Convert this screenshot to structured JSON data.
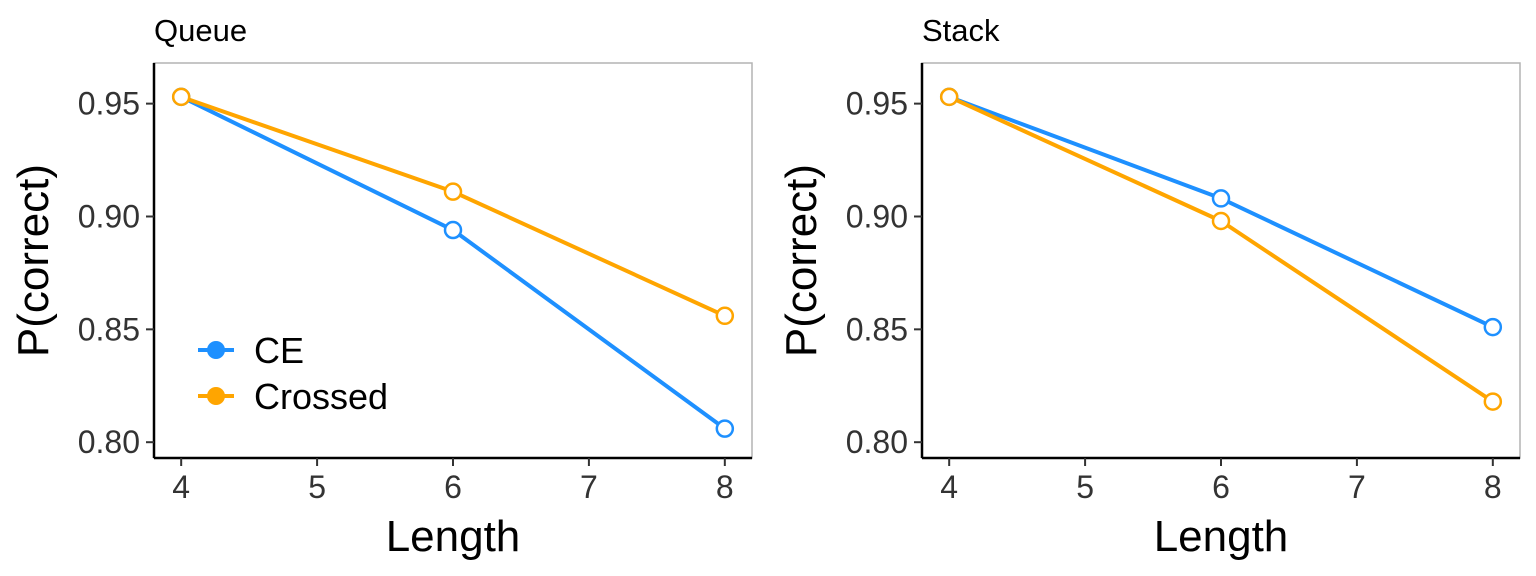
{
  "chart_data": [
    {
      "type": "line",
      "title": "Queue",
      "xlabel": "Length",
      "ylabel": "P(correct)",
      "x": [
        4,
        6,
        8
      ],
      "xticks": [
        4,
        5,
        6,
        7,
        8
      ],
      "xlim": [
        3.8,
        8.2
      ],
      "yticks": [
        0.8,
        0.85,
        0.9,
        0.95
      ],
      "ylim": [
        0.793,
        0.968
      ],
      "legend": "bottom-left",
      "series": [
        {
          "name": "CE",
          "color": "#1E90FF",
          "values": [
            0.953,
            0.894,
            0.806
          ]
        },
        {
          "name": "Crossed",
          "color": "#FFA500",
          "values": [
            0.953,
            0.911,
            0.856
          ]
        }
      ]
    },
    {
      "type": "line",
      "title": "Stack",
      "xlabel": "Length",
      "ylabel": "P(correct)",
      "x": [
        4,
        6,
        8
      ],
      "xticks": [
        4,
        5,
        6,
        7,
        8
      ],
      "xlim": [
        3.8,
        8.2
      ],
      "yticks": [
        0.8,
        0.85,
        0.9,
        0.95
      ],
      "ylim": [
        0.793,
        0.968
      ],
      "legend": "none",
      "series": [
        {
          "name": "CE",
          "color": "#1E90FF",
          "values": [
            0.953,
            0.908,
            0.851
          ]
        },
        {
          "name": "Crossed",
          "color": "#FFA500",
          "values": [
            0.953,
            0.898,
            0.818
          ]
        }
      ]
    }
  ]
}
